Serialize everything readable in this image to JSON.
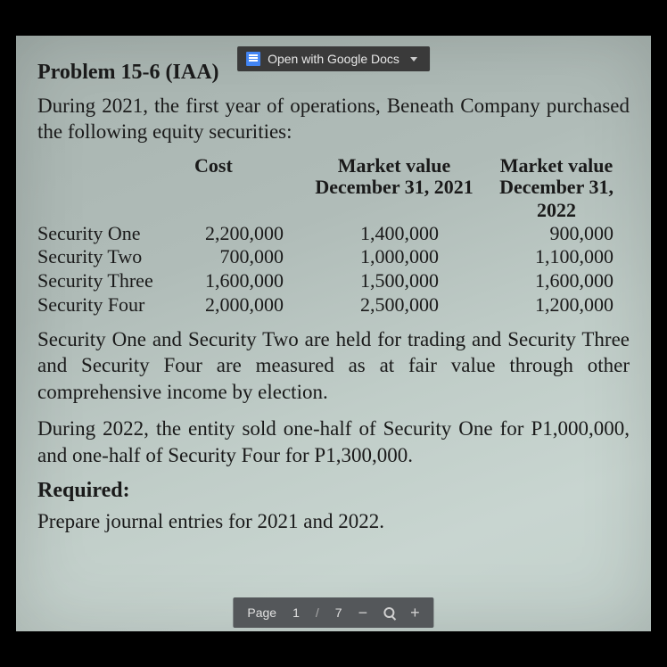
{
  "topbar": {
    "label": "Open with Google Docs"
  },
  "doc": {
    "title": "Problem 15-6 (IAA)",
    "intro": "During 2021, the first year of operations, Beneath Company purchased the following equity securities:",
    "table": {
      "headers": {
        "cost": "Cost",
        "mv": "Market value",
        "d1": "December 31, 2021",
        "d2": "December 31, 2022"
      },
      "rows": [
        {
          "name": "Security One",
          "cost": "2,200,000",
          "mv1": "1,400,000",
          "mv2": "900,000"
        },
        {
          "name": "Security Two",
          "cost": "700,000",
          "mv1": "1,000,000",
          "mv2": "1,100,000"
        },
        {
          "name": "Security Three",
          "cost": "1,600,000",
          "mv1": "1,500,000",
          "mv2": "1,600,000"
        },
        {
          "name": "Security Four",
          "cost": "2,000,000",
          "mv1": "2,500,000",
          "mv2": "1,200,000"
        }
      ]
    },
    "para1": "Security One and Security Two are held for trading and Security Three and Security Four are measured as at fair value through other comprehensive income by election.",
    "para2": "During 2022, the entity sold one-half of Security One for P1,000,000, and one-half of Security Four for P1,300,000.",
    "required_label": "Required:",
    "required_text": "Prepare journal entries for 2021 and 2022."
  },
  "bottombar": {
    "page_label": "Page",
    "current": "1",
    "sep": "/",
    "total": "7",
    "minus": "−",
    "plus": "+"
  }
}
